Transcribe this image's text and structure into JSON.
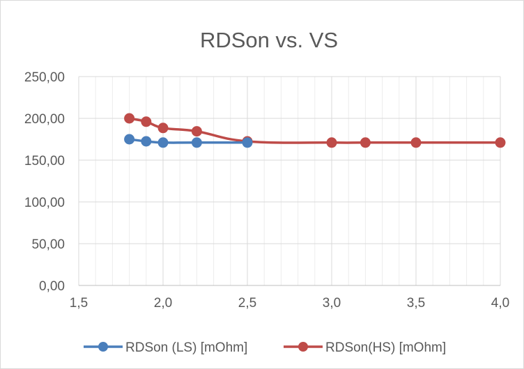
{
  "chart_data": {
    "type": "line",
    "title": "RDSon vs. VS",
    "xlabel": "",
    "ylabel": "",
    "xlim": [
      1.5,
      4.0
    ],
    "ylim": [
      0,
      250
    ],
    "x_ticks": [
      "1,5",
      "2,0",
      "2,5",
      "3,0",
      "3,5",
      "4,0"
    ],
    "x_tick_values": [
      1.5,
      2.0,
      2.5,
      3.0,
      3.5,
      4.0
    ],
    "y_ticks": [
      "0,00",
      "50,00",
      "100,00",
      "150,00",
      "200,00",
      "250,00"
    ],
    "y_tick_values": [
      0,
      50,
      100,
      150,
      200,
      250
    ],
    "grid": true,
    "legend_position": "bottom",
    "series": [
      {
        "name": "RDSon (LS) [mOhm]",
        "color": "#4a7ebb",
        "points": [
          {
            "x": 1.8,
            "y": 175
          },
          {
            "x": 1.9,
            "y": 172.5
          },
          {
            "x": 2.0,
            "y": 171
          },
          {
            "x": 2.2,
            "y": 171
          },
          {
            "x": 2.5,
            "y": 171
          }
        ]
      },
      {
        "name": "RDSon(HS) [mOhm]",
        "color": "#be4b48",
        "points": [
          {
            "x": 1.8,
            "y": 200
          },
          {
            "x": 1.9,
            "y": 196
          },
          {
            "x": 2.0,
            "y": 188.5
          },
          {
            "x": 2.2,
            "y": 184.5
          },
          {
            "x": 2.5,
            "y": 172.5
          },
          {
            "x": 3.0,
            "y": 171
          },
          {
            "x": 3.2,
            "y": 171
          },
          {
            "x": 3.5,
            "y": 171
          },
          {
            "x": 4.0,
            "y": 171
          }
        ]
      }
    ]
  }
}
